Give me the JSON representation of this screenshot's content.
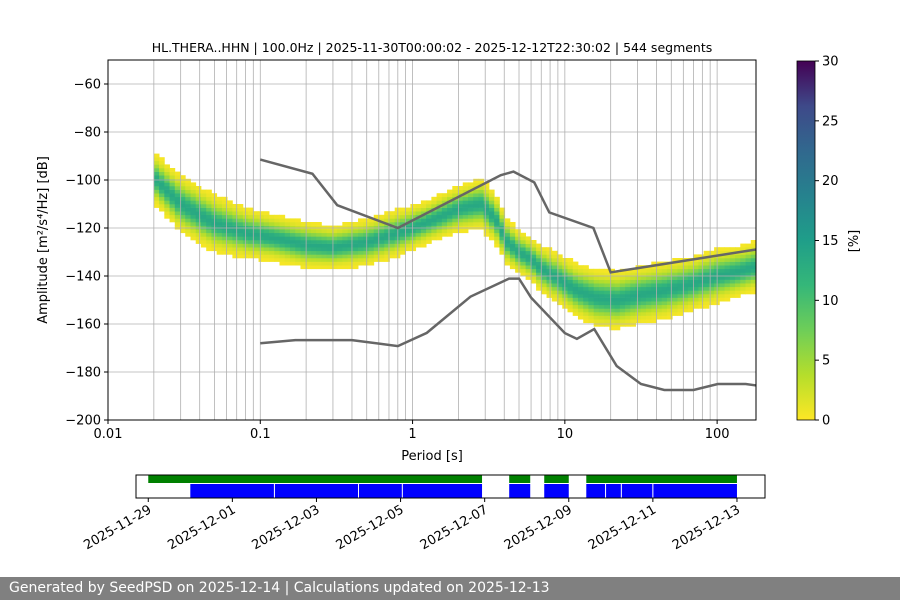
{
  "chart_data": [
    {
      "type": "heatmap",
      "title": "HL.THERA..HHN | 100.0Hz | 2025-11-30T00:00:02 - 2025-12-12T22:30:02 | 544 segments",
      "xlabel": "Period [s]",
      "ylabel": "Amplitude [m²/s⁴/Hz] [dB]",
      "x_scale": "log",
      "xlim": [
        0.01,
        180
      ],
      "ylim": [
        -200,
        -50
      ],
      "x_ticks": [
        {
          "value": 0.01,
          "label": "0.01"
        },
        {
          "value": 0.1,
          "label": "0.1"
        },
        {
          "value": 1,
          "label": "1"
        },
        {
          "value": 10,
          "label": "10"
        },
        {
          "value": 100,
          "label": "100"
        }
      ],
      "y_ticks": [
        -60,
        -80,
        -100,
        -120,
        -140,
        -160,
        -180,
        -200
      ],
      "grid": true,
      "colormap": "viridis_r",
      "colorbar": {
        "label": "[%]",
        "min": 0,
        "max": 30,
        "ticks": [
          0,
          5,
          10,
          15,
          20,
          25,
          30
        ]
      },
      "mode_curve": {
        "name": "",
        "period": [
          0.02,
          0.03,
          0.05,
          0.08,
          0.12,
          0.2,
          0.3,
          0.5,
          0.8,
          1.2,
          2.0,
          2.8,
          3.5,
          4.2,
          5.0,
          6.0,
          7.0,
          9.0,
          12.0,
          16.0,
          22.0,
          30.0,
          45.0,
          70.0,
          100.0,
          140.0,
          180.0
        ],
        "db": [
          -99,
          -110,
          -118,
          -122,
          -124,
          -127,
          -128,
          -126,
          -122,
          -118,
          -112,
          -110,
          -116,
          -126,
          -130,
          -133,
          -137,
          -141,
          -146,
          -149,
          -150,
          -148,
          -146,
          -143,
          -140,
          -138,
          -136
        ],
        "spread_db": [
          14,
          16,
          16,
          14,
          13,
          13,
          12,
          13,
          13,
          12,
          13,
          14,
          14,
          13,
          12,
          12,
          13,
          14,
          15,
          16,
          16,
          16,
          16,
          15,
          15,
          14,
          14
        ]
      },
      "nhnm": {
        "period": [
          0.1,
          0.22,
          0.32,
          0.8,
          3.8,
          4.6,
          6.3,
          7.9,
          15.4,
          20.0,
          354.8
        ],
        "db": [
          -91.5,
          -97.4,
          -110.5,
          -120.0,
          -98.0,
          -96.5,
          -101.0,
          -113.5,
          -120.0,
          -138.5,
          -126.0
        ]
      },
      "nlnm": {
        "period": [
          0.1,
          0.17,
          0.4,
          0.8,
          1.24,
          2.4,
          4.3,
          5.0,
          6.0,
          10.0,
          12.0,
          15.6,
          21.9,
          31.6,
          45.0,
          70.0,
          101.0,
          154.0,
          180.0
        ],
        "db": [
          -168.0,
          -166.7,
          -166.7,
          -169.2,
          -163.7,
          -148.6,
          -141.1,
          -141.1,
          -149.0,
          -163.8,
          -166.2,
          -162.1,
          -177.5,
          -185.0,
          -187.5,
          -187.5,
          -185.0,
          -185.0,
          -185.6
        ]
      }
    },
    {
      "type": "bar",
      "name": "data-availability",
      "xlim": [
        "2025-11-28T17:00",
        "2025-12-13T16:00"
      ],
      "tick_labels": [
        "2025-11-29",
        "2025-12-01",
        "2025-12-03",
        "2025-12-05",
        "2025-12-07",
        "2025-12-09",
        "2025-12-11",
        "2025-12-13"
      ],
      "tick_dates": [
        "2025-11-29",
        "2025-12-01",
        "2025-12-03",
        "2025-12-05",
        "2025-12-07",
        "2025-12-09",
        "2025-12-11",
        "2025-12-13"
      ],
      "green_segments": [
        [
          "2025-11-29T00:00",
          "2025-12-06T22:30"
        ],
        [
          "2025-12-07T14:00",
          "2025-12-08T02:00"
        ],
        [
          "2025-12-08T10:00",
          "2025-12-09T00:00"
        ],
        [
          "2025-12-09T10:00",
          "2025-12-13T00:00"
        ]
      ],
      "blue_segments": [
        [
          "2025-11-30T00:00",
          "2025-12-06T22:30"
        ],
        [
          "2025-12-07T14:00",
          "2025-12-08T02:00"
        ],
        [
          "2025-12-08T10:00",
          "2025-12-09T00:00"
        ],
        [
          "2025-12-09T10:00",
          "2025-12-13T00:00"
        ]
      ],
      "gap_lines": [
        "2025-12-02T00:00",
        "2025-12-04T00:00",
        "2025-12-05T01:00",
        "2025-12-09T21:00",
        "2025-12-10T06:00",
        "2025-12-11T00:00"
      ],
      "colors": {
        "green": "#008000",
        "blue": "#0000ff"
      }
    }
  ],
  "footer": {
    "text": "Generated by SeedPSD on 2025-12-14 | Calculations updated on 2025-12-13"
  }
}
